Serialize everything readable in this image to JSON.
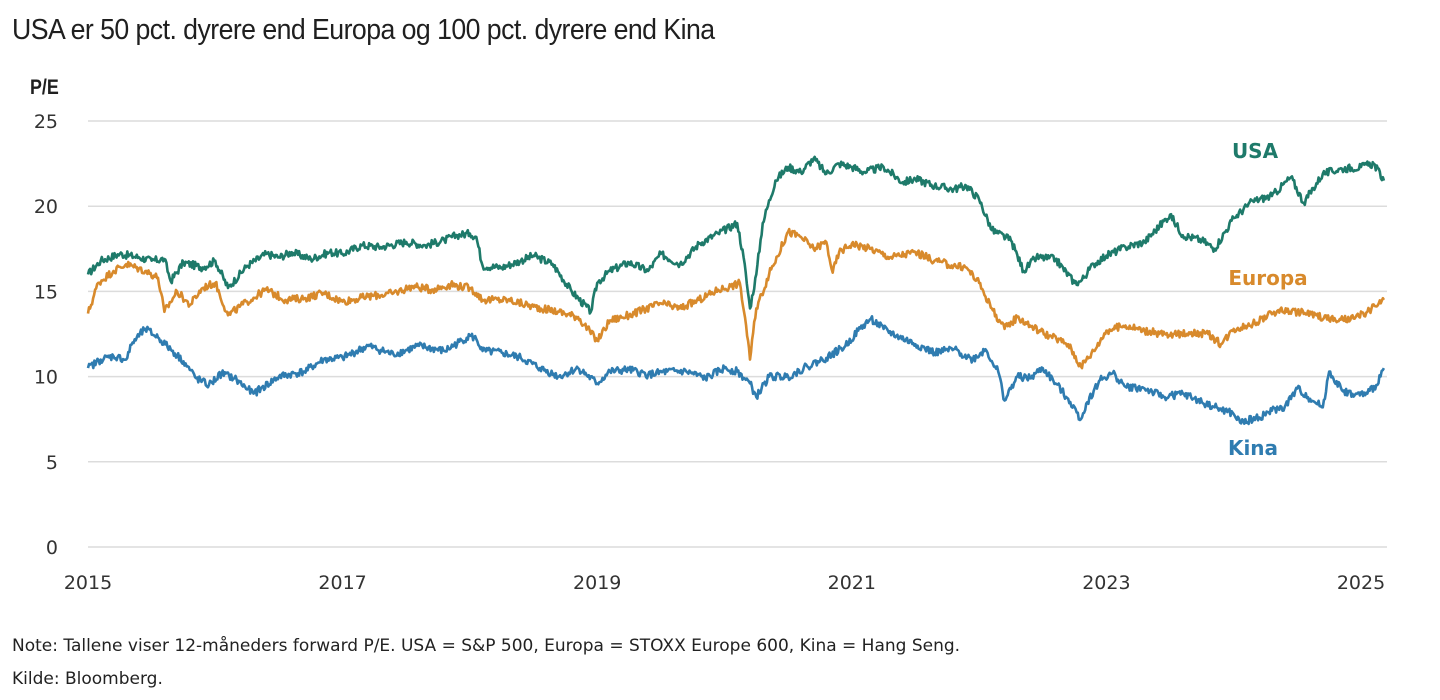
{
  "title": "USA er 50 pct. dyrere end Europa og 100 pct. dyrere end Kina",
  "note": "Note: Tallene viser 12-måneders forward P/E. USA = S&P 500, Europa = STOXX Europe 600, Kina = Hang Seng.",
  "source": "Kilde: Bloomberg.",
  "chart_data": {
    "type": "line",
    "title": "USA er 50 pct. dyrere end Europa og 100 pct. dyrere end Kina",
    "xlabel": "",
    "ylabel": "P/E",
    "xlim": [
      2015,
      2025.2
    ],
    "ylim": [
      0,
      25
    ],
    "yticks": [
      0,
      5,
      10,
      15,
      20,
      25
    ],
    "xticks": [
      2015,
      2017,
      2019,
      2021,
      2023,
      2025
    ],
    "xtick_labels": [
      "2015",
      "2017",
      "2019",
      "2021",
      "2023",
      "2025"
    ],
    "ytick_labels": [
      "0",
      "5",
      "10",
      "15",
      "20",
      "25"
    ],
    "grid": true,
    "legend": "inline labels at right",
    "series": [
      {
        "name": "USA",
        "color": "#1e7a6a",
        "x": [
          2015.0,
          2015.1,
          2015.25,
          2015.4,
          2015.5,
          2015.6,
          2015.65,
          2015.75,
          2015.9,
          2016.0,
          2016.1,
          2016.25,
          2016.4,
          2016.5,
          2016.6,
          2016.75,
          2016.9,
          2017.0,
          2017.15,
          2017.3,
          2017.5,
          2017.65,
          2017.8,
          2017.9,
          2018.0,
          2018.05,
          2018.1,
          2018.25,
          2018.4,
          2018.5,
          2018.65,
          2018.8,
          2018.95,
          2019.0,
          2019.1,
          2019.25,
          2019.4,
          2019.5,
          2019.65,
          2019.8,
          2019.95,
          2020.1,
          2020.15,
          2020.2,
          2020.25,
          2020.3,
          2020.4,
          2020.5,
          2020.6,
          2020.7,
          2020.8,
          2020.9,
          2021.0,
          2021.1,
          2021.25,
          2021.4,
          2021.5,
          2021.65,
          2021.8,
          2021.9,
          2022.0,
          2022.1,
          2022.25,
          2022.35,
          2022.45,
          2022.6,
          2022.75,
          2022.8,
          2022.9,
          2023.0,
          2023.15,
          2023.3,
          2023.5,
          2023.6,
          2023.75,
          2023.85,
          2024.0,
          2024.15,
          2024.3,
          2024.45,
          2024.55,
          2024.7,
          2024.85,
          2025.0,
          2025.1,
          2025.18
        ],
        "values": [
          16.0,
          16.8,
          17.2,
          17.0,
          16.8,
          16.9,
          15.6,
          16.7,
          16.4,
          16.8,
          15.2,
          16.5,
          17.2,
          17.0,
          17.3,
          16.9,
          17.3,
          17.2,
          17.7,
          17.6,
          17.9,
          17.7,
          18.0,
          18.3,
          18.4,
          18.2,
          16.5,
          16.4,
          16.8,
          17.1,
          16.6,
          15.0,
          13.8,
          15.5,
          16.2,
          16.7,
          16.2,
          17.2,
          16.6,
          17.8,
          18.4,
          19.0,
          17.0,
          14.0,
          16.0,
          19.0,
          21.5,
          22.3,
          22.0,
          22.8,
          21.9,
          22.5,
          22.3,
          22.0,
          22.3,
          21.4,
          21.6,
          21.2,
          21.0,
          21.2,
          20.4,
          18.6,
          18.0,
          16.2,
          17.0,
          16.9,
          15.5,
          15.6,
          16.6,
          17.1,
          17.6,
          17.9,
          19.5,
          18.3,
          18.0,
          17.5,
          19.3,
          20.3,
          20.6,
          21.7,
          20.2,
          21.9,
          22.2,
          22.3,
          22.5,
          21.5
        ]
      },
      {
        "name": "Europa",
        "color": "#d88a2c",
        "x": [
          2015.0,
          2015.08,
          2015.2,
          2015.3,
          2015.45,
          2015.55,
          2015.6,
          2015.7,
          2015.8,
          2015.9,
          2016.0,
          2016.1,
          2016.25,
          2016.4,
          2016.55,
          2016.7,
          2016.85,
          2017.0,
          2017.2,
          2017.4,
          2017.55,
          2017.7,
          2017.85,
          2018.0,
          2018.05,
          2018.1,
          2018.3,
          2018.5,
          2018.7,
          2018.85,
          2019.0,
          2019.1,
          2019.25,
          2019.5,
          2019.65,
          2019.8,
          2019.95,
          2020.05,
          2020.12,
          2020.17,
          2020.2,
          2020.25,
          2020.35,
          2020.5,
          2020.6,
          2020.7,
          2020.8,
          2020.85,
          2020.9,
          2021.0,
          2021.15,
          2021.3,
          2021.5,
          2021.65,
          2021.8,
          2021.9,
          2022.0,
          2022.1,
          2022.2,
          2022.3,
          2022.4,
          2022.55,
          2022.7,
          2022.8,
          2022.9,
          2023.0,
          2023.15,
          2023.3,
          2023.5,
          2023.65,
          2023.8,
          2023.9,
          2024.0,
          2024.15,
          2024.35,
          2024.5,
          2024.65,
          2024.8,
          2024.95,
          2025.05,
          2025.18
        ],
        "values": [
          13.7,
          15.5,
          16.2,
          16.6,
          16.2,
          15.8,
          13.8,
          15.0,
          14.2,
          15.2,
          15.5,
          13.6,
          14.4,
          15.1,
          14.5,
          14.6,
          14.9,
          14.4,
          14.7,
          14.9,
          15.3,
          15.1,
          15.4,
          15.2,
          14.9,
          14.5,
          14.5,
          14.1,
          13.8,
          13.5,
          12.1,
          13.3,
          13.6,
          14.3,
          14.0,
          14.5,
          15.1,
          15.3,
          15.5,
          13.0,
          11.0,
          14.0,
          16.0,
          18.5,
          18.2,
          17.5,
          17.9,
          16.1,
          17.3,
          17.8,
          17.5,
          17.0,
          17.3,
          16.8,
          16.5,
          16.4,
          15.5,
          14.0,
          12.8,
          13.5,
          13.0,
          12.4,
          11.9,
          10.6,
          11.5,
          12.7,
          13.0,
          12.7,
          12.4,
          12.6,
          12.5,
          11.9,
          12.8,
          13.1,
          13.9,
          13.8,
          13.6,
          13.3,
          13.4,
          13.8,
          14.5
        ]
      },
      {
        "name": "Kina",
        "color": "#2f7cb0",
        "x": [
          2015.0,
          2015.1,
          2015.2,
          2015.3,
          2015.35,
          2015.45,
          2015.55,
          2015.65,
          2015.75,
          2015.85,
          2015.95,
          2016.05,
          2016.15,
          2016.3,
          2016.5,
          2016.7,
          2016.85,
          2017.0,
          2017.2,
          2017.4,
          2017.6,
          2017.8,
          2018.0,
          2018.05,
          2018.1,
          2018.25,
          2018.4,
          2018.55,
          2018.7,
          2018.85,
          2019.0,
          2019.1,
          2019.25,
          2019.4,
          2019.55,
          2019.7,
          2019.85,
          2020.0,
          2020.1,
          2020.2,
          2020.25,
          2020.35,
          2020.5,
          2020.65,
          2020.8,
          2020.95,
          2021.05,
          2021.15,
          2021.25,
          2021.35,
          2021.5,
          2021.65,
          2021.8,
          2021.95,
          2022.05,
          2022.15,
          2022.2,
          2022.3,
          2022.4,
          2022.5,
          2022.6,
          2022.7,
          2022.8,
          2022.85,
          2022.95,
          2023.05,
          2023.15,
          2023.3,
          2023.45,
          2023.6,
          2023.75,
          2023.85,
          2024.0,
          2024.05,
          2024.2,
          2024.3,
          2024.4,
          2024.5,
          2024.6,
          2024.7,
          2024.75,
          2024.85,
          2024.95,
          2025.05,
          2025.12,
          2025.18
        ],
        "values": [
          10.5,
          11.0,
          11.2,
          11.0,
          12.0,
          12.8,
          12.3,
          11.6,
          10.9,
          9.9,
          9.5,
          10.2,
          9.9,
          9.0,
          10.0,
          10.3,
          11.0,
          11.1,
          11.8,
          11.3,
          11.8,
          11.5,
          12.4,
          12.2,
          11.5,
          11.4,
          11.1,
          10.5,
          10.0,
          10.5,
          9.6,
          10.3,
          10.4,
          10.1,
          10.3,
          10.3,
          9.9,
          10.5,
          10.3,
          9.6,
          8.8,
          10.0,
          10.0,
          10.6,
          11.1,
          11.8,
          12.7,
          13.4,
          12.8,
          12.4,
          11.9,
          11.4,
          11.6,
          11.0,
          11.6,
          10.3,
          8.6,
          10.0,
          9.9,
          10.5,
          9.6,
          8.7,
          7.5,
          8.5,
          9.8,
          10.2,
          9.4,
          9.3,
          8.8,
          9.0,
          8.5,
          8.2,
          7.8,
          7.3,
          7.6,
          8.0,
          8.2,
          9.3,
          8.7,
          8.2,
          10.3,
          9.2,
          8.9,
          9.0,
          9.5,
          10.5
        ]
      }
    ]
  }
}
